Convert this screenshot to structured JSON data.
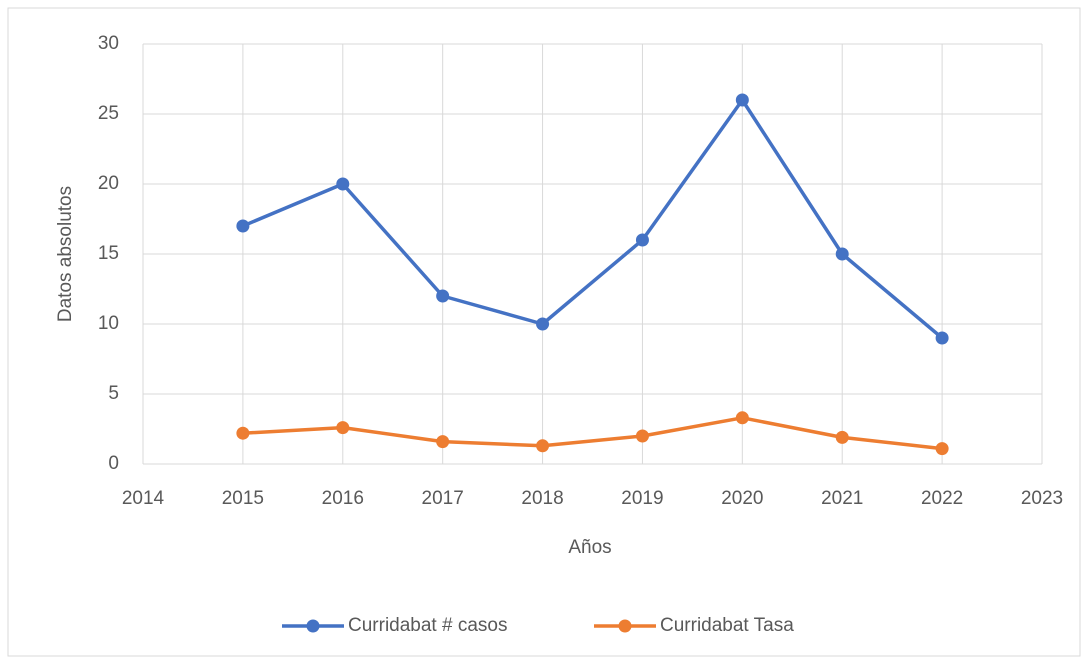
{
  "chart_data": {
    "type": "line",
    "x_label": "Años",
    "y_label": "Datos absolutos",
    "x": [
      2015,
      2016,
      2017,
      2018,
      2019,
      2020,
      2021,
      2022
    ],
    "series": [
      {
        "name": "Curridabat # casos",
        "color": "#4472c4",
        "values": [
          17,
          20,
          12,
          10,
          16,
          26,
          15,
          9
        ]
      },
      {
        "name": "Curridabat Tasa",
        "color": "#ed7d31",
        "values": [
          2.2,
          2.6,
          1.6,
          1.3,
          2.0,
          3.3,
          1.9,
          1.1
        ]
      }
    ],
    "xlim": [
      2014,
      2023
    ],
    "xticks": [
      2014,
      2015,
      2016,
      2017,
      2018,
      2019,
      2020,
      2021,
      2022,
      2023
    ],
    "ylim": [
      0,
      30
    ],
    "yticks": [
      0,
      5,
      10,
      15,
      20,
      25,
      30
    ],
    "grid": true,
    "legend": "bottom"
  }
}
